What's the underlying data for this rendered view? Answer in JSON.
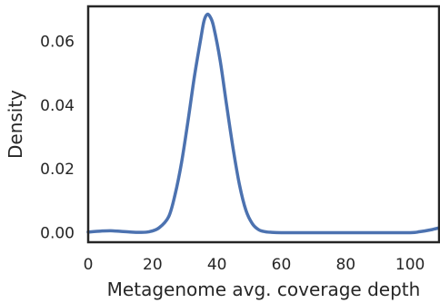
{
  "chart_data": {
    "type": "line",
    "xlabel": "Metagenome avg. coverage depth",
    "ylabel": "Density",
    "xlim": [
      0,
      109
    ],
    "ylim": [
      -0.003,
      0.071
    ],
    "x_ticks": [
      0,
      20,
      40,
      60,
      80,
      100
    ],
    "x_tick_labels": [
      "0",
      "20",
      "40",
      "60",
      "80",
      "100"
    ],
    "y_ticks": [
      0.0,
      0.02,
      0.04,
      0.06
    ],
    "y_tick_labels": [
      "0.00",
      "0.02",
      "0.04",
      "0.06"
    ],
    "grid": false,
    "line_color": "#4c72b0",
    "series": [
      {
        "x": [
          0,
          4,
          7,
          10,
          13,
          16,
          19,
          22,
          25,
          27,
          29,
          31,
          33,
          35,
          36,
          37,
          38,
          39,
          41,
          43,
          45,
          47,
          49,
          51,
          53,
          55,
          57,
          60,
          65,
          70,
          80,
          90,
          100,
          103,
          106,
          109
        ],
        "y": [
          0.0002,
          0.0005,
          0.0006,
          0.0004,
          0.0002,
          0.0001,
          0.0003,
          0.0015,
          0.005,
          0.012,
          0.022,
          0.035,
          0.049,
          0.061,
          0.0665,
          0.0685,
          0.0675,
          0.0645,
          0.054,
          0.04,
          0.0265,
          0.015,
          0.007,
          0.0028,
          0.0009,
          0.0003,
          0.0001,
          0.0,
          0.0,
          0.0,
          0.0,
          0.0,
          0.0,
          0.0003,
          0.0008,
          0.0015
        ]
      }
    ]
  }
}
